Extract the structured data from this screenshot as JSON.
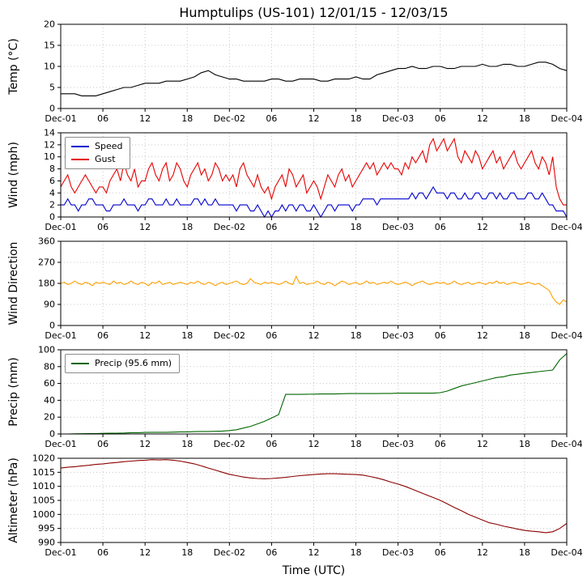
{
  "title": "Humptulips (US-101) 12/01/15 - 12/03/15",
  "xlabel": "Time (UTC)",
  "axis": {
    "x_range_hours": [
      0,
      72
    ],
    "xticks_hours": [
      0,
      6,
      12,
      18,
      24,
      30,
      36,
      42,
      48,
      54,
      60,
      66,
      72
    ],
    "xtick_labels": [
      "Dec-01",
      "06",
      "12",
      "18",
      "Dec-02",
      "06",
      "12",
      "18",
      "Dec-03",
      "06",
      "12",
      "18",
      "Dec-04"
    ]
  },
  "chart_data": [
    {
      "type": "line",
      "name": "temperature",
      "ylabel": "Temp (°C)",
      "ylim": [
        0,
        20
      ],
      "yticks": [
        0,
        5,
        10,
        15,
        20
      ],
      "series": [
        {
          "name": "Temp",
          "color": "#000000",
          "step_hours": 1,
          "values": [
            3.5,
            3.5,
            3.5,
            3,
            3,
            3,
            3.5,
            4,
            4.5,
            5,
            5,
            5.5,
            6,
            6,
            6,
            6.5,
            6.5,
            6.5,
            7,
            7.5,
            8.5,
            9,
            8,
            7.5,
            7,
            7,
            6.5,
            6.5,
            6.5,
            6.5,
            7,
            7,
            6.5,
            6.5,
            7,
            7,
            7,
            6.5,
            6.5,
            7,
            7,
            7,
            7.5,
            7,
            7,
            8,
            8.5,
            9,
            9.5,
            9.5,
            10,
            9.5,
            9.5,
            10,
            10,
            9.5,
            9.5,
            10,
            10,
            10,
            10.5,
            10,
            10,
            10.5,
            10.5,
            10,
            10,
            10.5,
            11,
            11,
            10.5,
            9.5,
            9
          ]
        }
      ]
    },
    {
      "type": "line",
      "name": "wind",
      "ylabel": "Wind (mph)",
      "ylim": [
        0,
        14
      ],
      "yticks": [
        0,
        2,
        4,
        6,
        8,
        10,
        12,
        14
      ],
      "legend": {
        "position": "upper left"
      },
      "series": [
        {
          "name": "Speed",
          "color": "#0000cc",
          "step_hours": 0.5,
          "values": [
            2,
            2,
            3,
            2,
            2,
            1,
            2,
            2,
            3,
            3,
            2,
            2,
            2,
            1,
            1,
            2,
            2,
            2,
            3,
            2,
            2,
            2,
            1,
            2,
            2,
            3,
            3,
            2,
            2,
            2,
            3,
            2,
            2,
            3,
            2,
            2,
            2,
            2,
            3,
            3,
            2,
            3,
            2,
            2,
            3,
            2,
            2,
            2,
            2,
            2,
            1,
            2,
            2,
            2,
            1,
            1,
            2,
            1,
            0,
            1,
            0,
            1,
            1,
            2,
            1,
            2,
            2,
            1,
            2,
            2,
            1,
            1,
            2,
            1,
            0,
            1,
            2,
            2,
            1,
            2,
            2,
            2,
            2,
            1,
            2,
            2,
            3,
            3,
            3,
            3,
            2,
            3,
            3,
            3,
            3,
            3,
            3,
            3,
            3,
            3,
            4,
            3,
            4,
            4,
            3,
            4,
            5,
            4,
            4,
            4,
            3,
            4,
            4,
            3,
            3,
            4,
            3,
            3,
            4,
            4,
            3,
            3,
            4,
            4,
            3,
            4,
            3,
            3,
            4,
            4,
            3,
            3,
            3,
            4,
            4,
            3,
            3,
            4,
            3,
            2,
            2,
            1,
            1,
            1,
            0
          ]
        },
        {
          "name": "Gust",
          "color": "#e60000",
          "step_hours": 0.5,
          "values": [
            5,
            6,
            7,
            5,
            4,
            5,
            6,
            7,
            6,
            5,
            4,
            5,
            5,
            4,
            6,
            7,
            8,
            6,
            9,
            7,
            6,
            8,
            5,
            6,
            6,
            8,
            9,
            7,
            6,
            8,
            9,
            6,
            7,
            9,
            8,
            6,
            5,
            7,
            8,
            9,
            7,
            8,
            6,
            7,
            9,
            8,
            6,
            7,
            6,
            7,
            5,
            8,
            9,
            7,
            6,
            5,
            7,
            5,
            4,
            5,
            3,
            5,
            6,
            7,
            5,
            8,
            7,
            5,
            6,
            7,
            4,
            5,
            6,
            5,
            3,
            5,
            7,
            6,
            5,
            7,
            8,
            6,
            7,
            5,
            6,
            7,
            8,
            9,
            8,
            9,
            7,
            8,
            9,
            8,
            9,
            8,
            8,
            7,
            9,
            8,
            10,
            9,
            10,
            11,
            9,
            12,
            13,
            11,
            12,
            13,
            11,
            12,
            13,
            10,
            9,
            11,
            10,
            9,
            11,
            10,
            8,
            9,
            10,
            11,
            9,
            10,
            8,
            9,
            10,
            11,
            9,
            8,
            9,
            10,
            11,
            9,
            8,
            10,
            9,
            7,
            10,
            5,
            3,
            2,
            2
          ]
        }
      ]
    },
    {
      "type": "line",
      "name": "wind-direction",
      "ylabel": "Wind Direction",
      "ylim": [
        0,
        360
      ],
      "yticks": [
        0,
        90,
        180,
        270,
        360
      ],
      "series": [
        {
          "name": "Direction",
          "color": "#ffa000",
          "step_hours": 0.5,
          "values": [
            180,
            185,
            175,
            180,
            190,
            180,
            175,
            185,
            180,
            170,
            185,
            180,
            185,
            180,
            175,
            190,
            180,
            185,
            175,
            180,
            190,
            180,
            175,
            185,
            180,
            170,
            185,
            180,
            190,
            175,
            180,
            185,
            175,
            180,
            185,
            180,
            175,
            185,
            180,
            190,
            180,
            175,
            185,
            180,
            170,
            180,
            185,
            175,
            180,
            185,
            190,
            180,
            175,
            180,
            200,
            185,
            180,
            175,
            185,
            180,
            185,
            180,
            175,
            180,
            190,
            180,
            175,
            210,
            180,
            185,
            175,
            180,
            180,
            190,
            180,
            175,
            185,
            180,
            170,
            180,
            190,
            185,
            175,
            180,
            185,
            175,
            180,
            190,
            180,
            185,
            175,
            180,
            185,
            180,
            190,
            180,
            175,
            180,
            185,
            180,
            170,
            180,
            185,
            190,
            180,
            175,
            180,
            185,
            180,
            185,
            175,
            180,
            190,
            180,
            175,
            180,
            185,
            175,
            180,
            185,
            180,
            175,
            185,
            180,
            190,
            180,
            185,
            175,
            180,
            185,
            180,
            175,
            180,
            185,
            180,
            175,
            180,
            170,
            160,
            150,
            120,
            100,
            90,
            110,
            100
          ]
        }
      ]
    },
    {
      "type": "line",
      "name": "precip",
      "ylabel": "Precip (mm)",
      "ylim": [
        0,
        100
      ],
      "yticks": [
        0,
        20,
        40,
        60,
        80,
        100
      ],
      "legend": {
        "position": "upper left"
      },
      "total_mm": 95.6,
      "series": [
        {
          "name": "Precip (95.6 mm)",
          "color": "#006600",
          "step_hours": 1,
          "values": [
            0,
            0,
            0.2,
            0.3,
            0.5,
            0.5,
            0.8,
            1,
            1,
            1.2,
            1.5,
            1.5,
            1.8,
            2,
            2,
            2,
            2.2,
            2.5,
            2.5,
            2.8,
            3,
            3,
            3.2,
            3.5,
            4,
            5,
            7,
            9,
            12,
            15,
            19,
            23,
            47,
            47,
            47,
            47.2,
            47.3,
            47.5,
            47.5,
            47.5,
            47.8,
            48,
            48,
            48,
            48,
            48,
            48.2,
            48.2,
            48.5,
            48.5,
            48.5,
            48.5,
            48.5,
            48.5,
            49,
            51,
            54,
            57,
            59,
            61,
            63,
            65,
            67,
            68,
            70,
            71,
            72,
            73,
            74,
            75,
            76,
            88,
            95.6
          ]
        }
      ]
    },
    {
      "type": "line",
      "name": "altimeter",
      "ylabel": "Altimeter (hPa)",
      "ylim": [
        990,
        1020
      ],
      "yticks": [
        990,
        995,
        1000,
        1005,
        1010,
        1015,
        1020
      ],
      "series": [
        {
          "name": "Altimeter",
          "color": "#8b0000",
          "step_hours": 1,
          "values": [
            1016.5,
            1016.8,
            1017,
            1017.3,
            1017.5,
            1017.8,
            1018,
            1018.3,
            1018.5,
            1018.8,
            1019,
            1019.2,
            1019.3,
            1019.5,
            1019.4,
            1019.5,
            1019.3,
            1019,
            1018.5,
            1018,
            1017.3,
            1016.5,
            1015.8,
            1015,
            1014.3,
            1013.8,
            1013.3,
            1013,
            1012.8,
            1012.7,
            1012.8,
            1013,
            1013.2,
            1013.5,
            1013.8,
            1014,
            1014.2,
            1014.4,
            1014.5,
            1014.5,
            1014.4,
            1014.3,
            1014.2,
            1014,
            1013.5,
            1013,
            1012.3,
            1011.5,
            1010.8,
            1010,
            1009,
            1008,
            1007,
            1006,
            1005,
            1003.8,
            1002.5,
            1001.3,
            1000,
            999,
            998,
            997,
            996.5,
            995.8,
            995.3,
            994.8,
            994.3,
            994,
            993.8,
            993.5,
            993.8,
            995,
            996.8
          ]
        }
      ]
    }
  ]
}
